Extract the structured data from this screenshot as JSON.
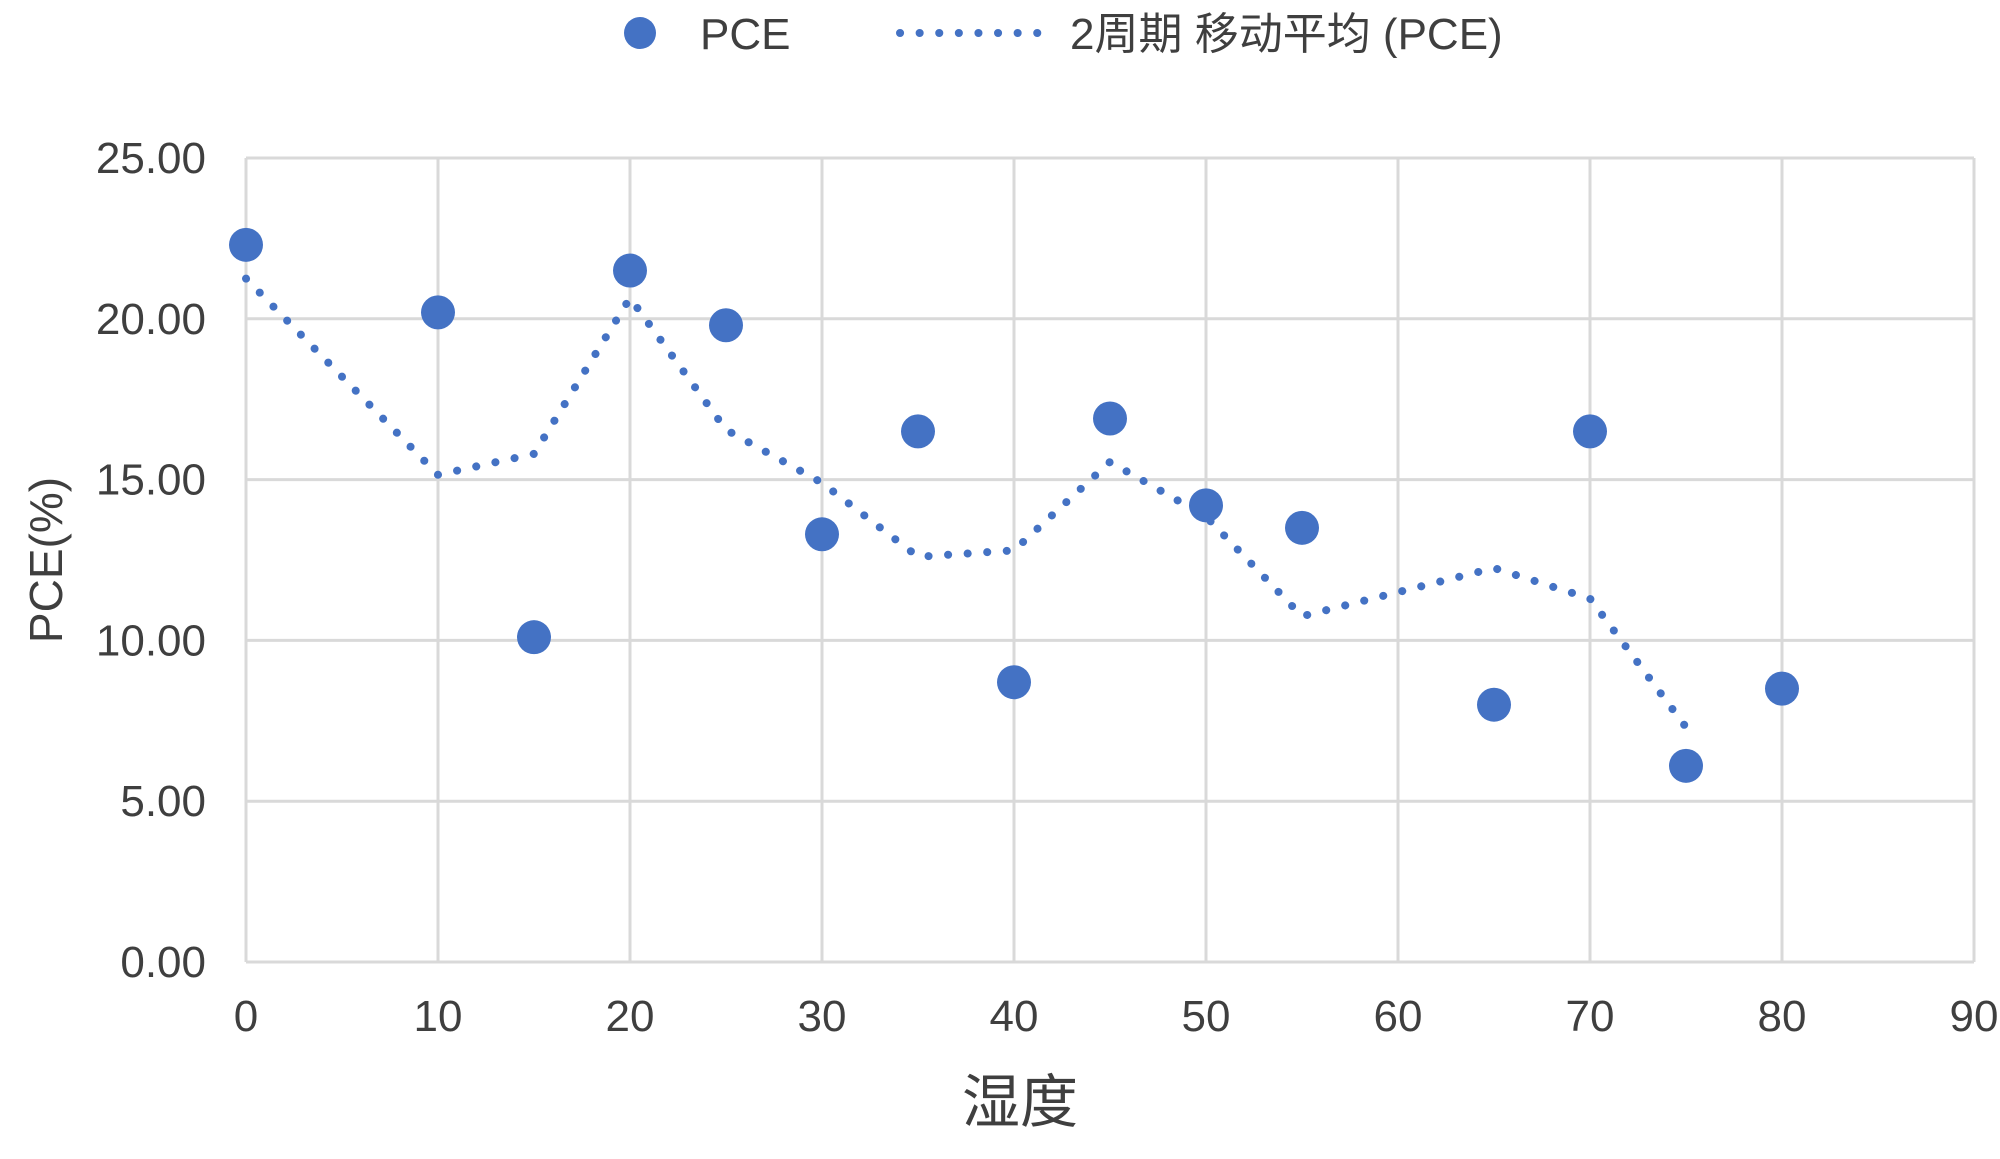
{
  "colors": {
    "accent": "#4472C4",
    "gridline": "#D9D9D9",
    "axis_text": "#3F3F3F",
    "background": "#FFFFFF"
  },
  "legend": {
    "scatter_label": "PCE",
    "trendline_label": "2周期 移动平均 (PCE)"
  },
  "chart_data": {
    "type": "scatter",
    "title": "",
    "xlabel": "湿度",
    "ylabel": "PCE(%)",
    "xlim": [
      0,
      90
    ],
    "ylim": [
      0,
      25
    ],
    "x_ticks": [
      0,
      10,
      20,
      30,
      40,
      50,
      60,
      70,
      80,
      90
    ],
    "x_tick_labels": [
      "0",
      "10",
      "20",
      "30",
      "40",
      "50",
      "60",
      "70",
      "80",
      "90"
    ],
    "y_ticks": [
      0,
      5,
      10,
      15,
      20,
      25
    ],
    "y_tick_labels": [
      "0.00",
      "5.00",
      "10.00",
      "15.00",
      "20.00",
      "25.00"
    ],
    "grid": true,
    "legend_position": "top-center",
    "series": [
      {
        "name": "PCE",
        "type": "scatter",
        "marker": "circle",
        "color": "#4472C4",
        "x": [
          0,
          10,
          15,
          20,
          25,
          30,
          35,
          40,
          45,
          50,
          55,
          65,
          70,
          75,
          80
        ],
        "y": [
          22.3,
          20.2,
          10.1,
          21.5,
          19.8,
          13.3,
          16.5,
          8.7,
          16.9,
          14.2,
          13.5,
          8.0,
          16.5,
          6.1,
          8.5
        ]
      },
      {
        "name": "2周期 移动平均 (PCE)",
        "type": "line",
        "style": "dotted",
        "color": "#4472C4",
        "x": [
          0,
          10,
          15,
          20,
          25,
          30,
          35,
          40,
          45,
          50,
          55,
          65,
          70,
          75
        ],
        "y": [
          21.25,
          15.15,
          15.8,
          20.65,
          16.55,
          14.9,
          12.6,
          12.8,
          15.55,
          13.85,
          10.75,
          12.25,
          11.3,
          7.3
        ]
      }
    ]
  }
}
